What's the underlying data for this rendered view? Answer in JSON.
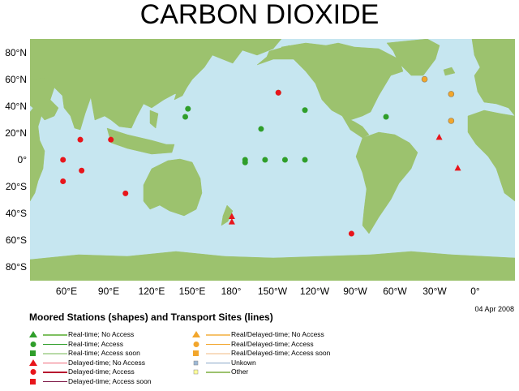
{
  "title": "CARBON DIOXIDE",
  "date": "04 Apr 2008",
  "map": {
    "y_labels": [
      "80°N",
      "60°N",
      "40°N",
      "20°N",
      "0°",
      "20°S",
      "40°S",
      "60°S",
      "80°S"
    ],
    "x_labels": [
      "60°E",
      "90°E",
      "120°E",
      "150°E",
      "180°",
      "150°W",
      "120°W",
      "90°W",
      "60°W",
      "30°W",
      "0°"
    ],
    "colors": {
      "ocean": "#c6e6f0",
      "land": "#9cc26e",
      "realtime": "#2f9e2a",
      "delayed": "#e8151b",
      "real_delayed": "#f2a62c"
    },
    "stations": [
      {
        "type": "circle",
        "group": "realtime",
        "lon": 147,
        "lat": 38
      },
      {
        "type": "circle",
        "group": "realtime",
        "lon": 145,
        "lat": 32
      },
      {
        "type": "circle",
        "group": "realtime",
        "lon": -158,
        "lat": 23
      },
      {
        "type": "circle",
        "group": "realtime",
        "lon": -145,
        "lat": 50
      },
      {
        "type": "circle",
        "group": "realtime",
        "lon": -125,
        "lat": 37
      },
      {
        "type": "circle",
        "group": "realtime",
        "lon": -64,
        "lat": 32
      },
      {
        "type": "circle",
        "group": "realtime",
        "lon": -170,
        "lat": 0
      },
      {
        "type": "circle",
        "group": "realtime",
        "lon": -170,
        "lat": -2
      },
      {
        "type": "circle",
        "group": "realtime",
        "lon": -155,
        "lat": 0
      },
      {
        "type": "circle",
        "group": "realtime",
        "lon": -140,
        "lat": 0
      },
      {
        "type": "circle",
        "group": "realtime",
        "lon": -125,
        "lat": 0
      },
      {
        "type": "circle",
        "group": "delayed",
        "lon": -145,
        "lat": 50
      },
      {
        "type": "circle",
        "group": "delayed",
        "lon": 66,
        "lat": 15
      },
      {
        "type": "circle",
        "group": "delayed",
        "lon": 89,
        "lat": 15
      },
      {
        "type": "circle",
        "group": "delayed",
        "lon": 53,
        "lat": 0
      },
      {
        "type": "circle",
        "group": "delayed",
        "lon": 67,
        "lat": -8
      },
      {
        "type": "circle",
        "group": "delayed",
        "lon": 53,
        "lat": -16
      },
      {
        "type": "circle",
        "group": "delayed",
        "lon": 100,
        "lat": -25
      },
      {
        "type": "circle",
        "group": "delayed",
        "lon": -90,
        "lat": -55
      },
      {
        "type": "triangle",
        "group": "delayed",
        "lon": -180,
        "lat": -42
      },
      {
        "type": "triangle",
        "group": "delayed",
        "lon": -180,
        "lat": -46
      },
      {
        "type": "triangle",
        "group": "delayed",
        "lon": -24,
        "lat": 17
      },
      {
        "type": "triangle",
        "group": "delayed",
        "lon": -10,
        "lat": -6
      },
      {
        "type": "circle",
        "group": "real_delayed",
        "lon": -35,
        "lat": 60
      },
      {
        "type": "circle",
        "group": "real_delayed",
        "lon": -15,
        "lat": 49
      },
      {
        "type": "circle",
        "group": "real_delayed",
        "lon": -15,
        "lat": 29
      }
    ]
  },
  "legend": {
    "title": "Moored Stations (shapes) and Transport Sites (lines)",
    "col1": [
      {
        "shape": "triangle",
        "color": "#2f9e2a",
        "line": "#7fc061",
        "label": "Real-time; No Access"
      },
      {
        "shape": "circle",
        "color": "#2f9e2a",
        "line": "#2f9e2a",
        "label": "Real-time; Access"
      },
      {
        "shape": "square",
        "color": "#2f9e2a",
        "line": "#b9dba8",
        "label": "Real-time; Access soon"
      },
      {
        "shape": "triangle",
        "color": "#e8151b",
        "line": "#f06a7c",
        "label": "Delayed-time; No Access"
      },
      {
        "shape": "circle",
        "color": "#e8151b",
        "line": "#b8142f",
        "label": "Delayed-time; Access"
      },
      {
        "shape": "square",
        "color": "#e8151b",
        "line": "#7a1242",
        "label": "Delayed-time; Access soon"
      }
    ],
    "col2": [
      {
        "shape": "triangle",
        "color": "#f2a62c",
        "line": "#f6c36e",
        "label": "Real/Delayed-time; No Access"
      },
      {
        "shape": "circle",
        "color": "#f2a62c",
        "line": "#f2a62c",
        "label": "Real/Delayed-time; Access"
      },
      {
        "shape": "square",
        "color": "#f2a62c",
        "line": "#f8dcc0",
        "label": "Real/Delayed-time; Access soon"
      },
      {
        "shape": "square-small",
        "color": "#9db8d6",
        "line": "#8aa8c8",
        "label": "Unkown"
      },
      {
        "shape": "square-small",
        "color": "#ffff99",
        "line": "#9cc26e",
        "label": "Other"
      }
    ]
  }
}
